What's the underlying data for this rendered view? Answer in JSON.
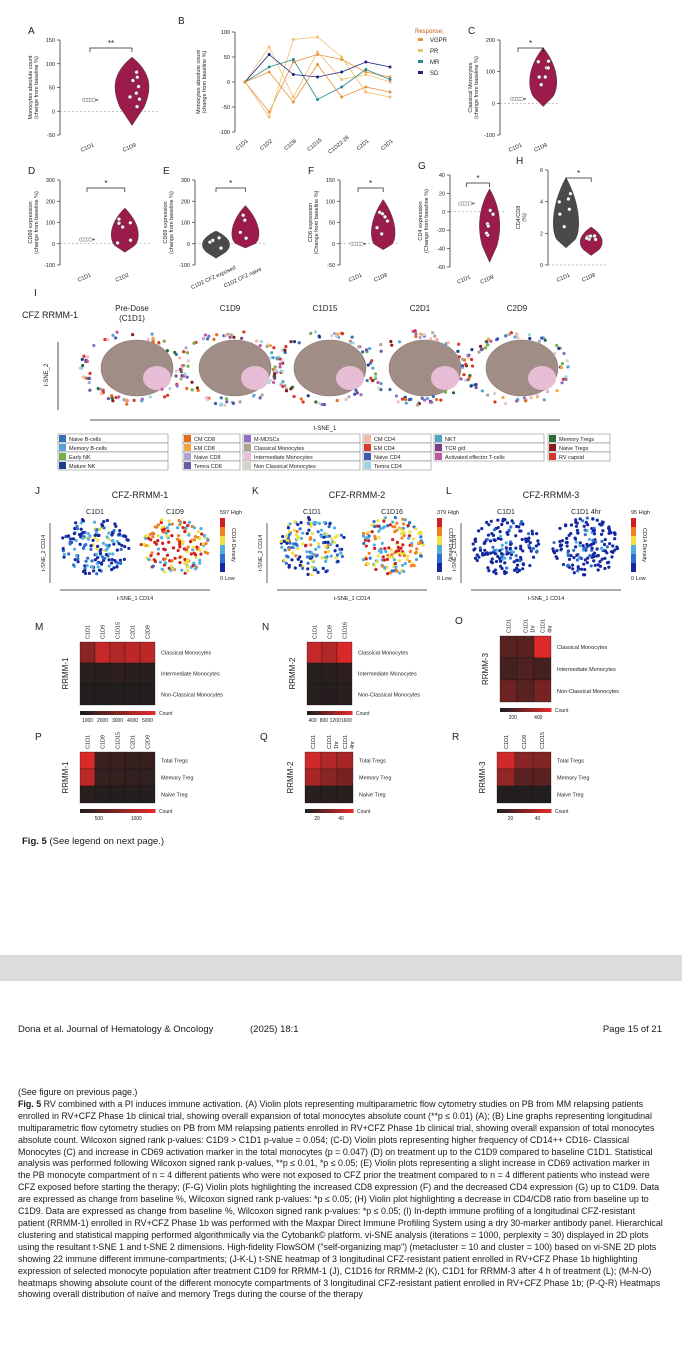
{
  "panels": {
    "A": {
      "letter": "A",
      "ylabel": "Monocytes absolute count (change from baseline %)",
      "yticks": [
        "150",
        "100",
        "50",
        "0",
        "-50"
      ],
      "xticks": [
        "C1D1",
        "C1D9"
      ],
      "sig": "**"
    },
    "B": {
      "letter": "B",
      "ylabel": "Monocytes absolute count (change from baseline %)",
      "yticks": [
        "100",
        "50",
        "0",
        "-50",
        "-100"
      ],
      "xticks": [
        "C1D1",
        "C1D2",
        "C1D9",
        "C1D15",
        "C1D22-28",
        "C2D1",
        "C3D1"
      ],
      "legend_title": "Response:",
      "legend": [
        {
          "name": "VGPR",
          "color": "#e8933a"
        },
        {
          "name": "PR",
          "color": "#f0c070"
        },
        {
          "name": "MR",
          "color": "#2a8a8a"
        },
        {
          "name": "SD",
          "color": "#1a237e"
        }
      ]
    },
    "C": {
      "letter": "C",
      "ylabel": "Classical Monocytes (change from baseline %)",
      "yticks": [
        "200",
        "100",
        "0",
        "-100"
      ],
      "xticks": [
        "C1D1",
        "C1D9"
      ],
      "sig": "*"
    },
    "D": {
      "letter": "D",
      "ylabel": "CD69 expression (change from baseline %)",
      "yticks": [
        "300",
        "200",
        "100",
        "0",
        "-100"
      ],
      "xticks": [
        "C1D1",
        "C1D2"
      ],
      "sig": "*"
    },
    "E": {
      "letter": "E",
      "ylabel": "CD69 expression (change from baseline %)",
      "yticks": [
        "300",
        "200",
        "100",
        "0",
        "-100"
      ],
      "xticks": [
        "C1D2 CFZ exposed",
        "C1D2 CFZ naive"
      ],
      "sig": "*"
    },
    "F": {
      "letter": "F",
      "ylabel": "CD8 expression (Change from baseline %)",
      "yticks": [
        "150",
        "100",
        "50",
        "0",
        "-50"
      ],
      "xticks": [
        "C1D1",
        "C1D9"
      ],
      "sig": "*"
    },
    "G": {
      "letter": "G",
      "ylabel": "CD4 expression (Change from baseline %)",
      "yticks": [
        "40",
        "20",
        "0",
        "-20",
        "-40",
        "-60"
      ],
      "xticks": [
        "C1D1",
        "C1D9"
      ],
      "sig": "*"
    },
    "H": {
      "letter": "H",
      "ylabel": "CD4/CD8 (%)",
      "yticks": [
        "6",
        "4",
        "2",
        "0"
      ],
      "xticks": [
        "C1D1",
        "C1D9"
      ],
      "sig": "*"
    },
    "I": {
      "letter": "I",
      "patient": "CFZ RRMM-1",
      "timepoints": [
        "Pre-Dose (C1D1)",
        "C1D9",
        "C1D15",
        "C2D1",
        "C2D9"
      ],
      "xaxis": "t-SNE_1",
      "yaxis": "t-SNE_2",
      "legend": [
        {
          "label": "Naive B-cells",
          "color": "#3b6fb6"
        },
        {
          "label": "Memory B-cells",
          "color": "#5aa0d8"
        },
        {
          "label": "Early NK",
          "color": "#74b04a"
        },
        {
          "label": "Mature NK",
          "color": "#1f3f8a"
        },
        {
          "label": "CM CD8",
          "color": "#e66c1a"
        },
        {
          "label": "EM CD8",
          "color": "#f2a541"
        },
        {
          "label": "Naive CD8",
          "color": "#b0a3cf"
        },
        {
          "label": "Temra CD8",
          "color": "#6f5aa8"
        },
        {
          "label": "M-MDSCs",
          "color": "#8e6fc1"
        },
        {
          "label": "Classical Monocytes",
          "color": "#b3a08f"
        },
        {
          "label": "Intermediate Monocytes",
          "color": "#ecbcd8"
        },
        {
          "label": "Non Classical Monocytes",
          "color": "#d7d0c8"
        },
        {
          "label": "CM CD4",
          "color": "#f4b7a6"
        },
        {
          "label": "EM CD4",
          "color": "#d73a2e"
        },
        {
          "label": "Naive CD4",
          "color": "#3a5bb0"
        },
        {
          "label": "Temra CD4",
          "color": "#9fd3e0"
        },
        {
          "label": "NKT",
          "color": "#4fa7c4"
        },
        {
          "label": "TCR g/d",
          "color": "#7a3d88"
        },
        {
          "label": "Activated effector T-cells",
          "color": "#c05aa0"
        },
        {
          "label": "Memory Tregs",
          "color": "#2e6b3a"
        },
        {
          "label": "Naive Tregs",
          "color": "#8a1c1c"
        },
        {
          "label": "RV capsid",
          "color": "#d8342c"
        }
      ]
    },
    "J": {
      "letter": "J",
      "title": "CFZ-RRMM-1",
      "left": "C1D1",
      "right": "C1D9",
      "high": "597 High",
      "low": "0 Low",
      "bar_label": "CD14 Density",
      "xaxis": "t-SNE_1 CD14",
      "yaxis": "t-SNE_2 CD14"
    },
    "K": {
      "letter": "K",
      "title": "CFZ-RRMM-2",
      "left": "C1D1",
      "right": "C1D16",
      "high": "379 High",
      "low": "0 Low",
      "bar_label": "CD14 Density",
      "xaxis": "t-SNE_1 CD14",
      "yaxis": "t-SNE_2 CD14"
    },
    "L": {
      "letter": "L",
      "title": "CFZ-RRMM-3",
      "left": "C1D1",
      "right": "C1D1 4hr",
      "high": "95 High",
      "low": "0 Low",
      "bar_label": "CD14 Density",
      "xaxis": "t-SNE_1 CD14",
      "yaxis": "t-SNE_2 CD14"
    },
    "M": {
      "letter": "M",
      "side": "RRMM-1",
      "cols": [
        "C1D1",
        "C1D9",
        "C1D15",
        "C2D1",
        "C2D9"
      ],
      "rows": [
        "Classical Monocytes",
        "Intermediate Monocytes",
        "Non-Classical Monocytes"
      ],
      "values": [
        [
          0.55,
          0.85,
          0.75,
          0.8,
          0.8
        ],
        [
          0.05,
          0.05,
          0.08,
          0.05,
          0.05
        ],
        [
          0.02,
          0.02,
          0.02,
          0.02,
          0.02
        ]
      ],
      "scale": [
        "1000",
        "2000",
        "3000",
        "4000",
        "5000"
      ],
      "scale_label": "Count"
    },
    "N": {
      "letter": "N",
      "side": "RRMM-2",
      "cols": [
        "C1D1",
        "C1D9",
        "C1D16"
      ],
      "rows": [
        "Classical Monocytes",
        "Intermediate Monocytes",
        "Non-Classical Monocytes"
      ],
      "values": [
        [
          0.85,
          0.75,
          0.95
        ],
        [
          0.05,
          0.05,
          0.08
        ],
        [
          0.05,
          0.04,
          0.05
        ]
      ],
      "scale": [
        "400",
        "800",
        "1200",
        "1600"
      ],
      "scale_label": "Count"
    },
    "O": {
      "letter": "O",
      "side": "RRMM-3",
      "cols": [
        "C1D1",
        "C1D1 1hr",
        "C1D1 4hr"
      ],
      "rows": [
        "Classical Monocytes",
        "Intermediate Monocytes",
        "Non-Classical Monocytes"
      ],
      "values": [
        [
          0.3,
          0.3,
          0.95
        ],
        [
          0.2,
          0.25,
          0.2
        ],
        [
          0.4,
          0.3,
          0.45
        ]
      ],
      "scale": [
        "200",
        "400"
      ],
      "scale_label": "Count"
    },
    "P": {
      "letter": "P",
      "side": "RRMM-1",
      "cols": [
        "C1D1",
        "C1D9",
        "C1D15",
        "C2D1",
        "C2D9"
      ],
      "rows": [
        "Total Tregs",
        "Memory Treg",
        "Naive Treg"
      ],
      "values": [
        [
          0.95,
          0.15,
          0.15,
          0.12,
          0.12
        ],
        [
          0.8,
          0.12,
          0.12,
          0.1,
          0.1
        ],
        [
          0.05,
          0.03,
          0.03,
          0.03,
          0.03
        ]
      ],
      "scale": [
        "500",
        "1000"
      ],
      "scale_label": "Count"
    },
    "Q": {
      "letter": "Q",
      "side": "RRMM-2",
      "cols": [
        "C1D1",
        "C1D1 1hr",
        "C1D1 4hr"
      ],
      "rows": [
        "Total Tregs",
        "Memory Treg",
        "Naive Treg"
      ],
      "values": [
        [
          0.9,
          0.75,
          0.7
        ],
        [
          0.7,
          0.55,
          0.45
        ],
        [
          0.05,
          0.05,
          0.05
        ]
      ],
      "scale": [
        "20",
        "40"
      ],
      "scale_label": "Count"
    },
    "R": {
      "letter": "R",
      "side": "RRMM-3",
      "cols": [
        "C1D1",
        "C1D9",
        "C1D15"
      ],
      "rows": [
        "Total Tregs",
        "Memory Treg",
        "Naive Treg"
      ],
      "values": [
        [
          0.9,
          0.55,
          0.5
        ],
        [
          0.6,
          0.3,
          0.3
        ],
        [
          0.02,
          0.02,
          0.02
        ]
      ],
      "scale": [
        "20",
        "40"
      ],
      "scale_label": "Count"
    }
  },
  "figure_caption": {
    "label": "Fig. 5",
    "text": " (See legend on next page.)"
  },
  "page_header": {
    "journal_left": "Dona et al. Journal of Hematology & Oncology",
    "year_vol": "(2025) 18:1",
    "page": "Page 15 of 21"
  },
  "legend": {
    "see_figure": "(See figure on previous page.)",
    "label": "Fig. 5",
    "text": " RV combined with a PI induces immune activation. (A) Violin plots representing multiparametric flow cytometry studies on PB from MM relapsing patients enrolled in RV+CFZ Phase 1b clinical trial, showing overall expansion of total monocytes absolute count (**p ≤ 0.01) (A); (B) Line graphs representing longitudinal multiparametric flow cytometry studies on PB from MM relapsing patients enrolled in RV+CFZ Phase 1b clinical trial, showing overall expansion of total monocytes absolute count. Wilcoxon signed rank p-values: C1D9 > C1D1 p-value = 0.054; (C-D) Violin plots representing higher frequency of CD14++ CD16- Classical Monocytes (C) and increase in CD69 activation marker in the total monocytes (p = 0.047) (D) on treatment up to the C1D9 compared to baseline C1D1. Statistical analysis was performed following Wilcoxon signed rank p-values, **p ≤ 0.01, *p ≤ 0.05; (E) Violin plots representing a slight increase in CD69 activation marker in the PB monocyte compartment of n = 4 different patients who were not exposed to CFZ prior the treatment compared to n = 4 different patients who instead were CFZ exposed before starting the therapy; (F-G) Violin plots highlighting the increased CD8 expression (F) and the decreased CD4 expression (G) up to C1D9. Data are expressed as change from baseline %, Wilcoxon signed rank p-values: *p ≤ 0.05; (H) Violin plot highlighting a decrease in CD4/CD8 ratio from baseline up to C1D9. Data are expressed as change from baseline %, Wilcoxon signed rank p-values: *p ≤ 0.05; (I) In-depth immune profiling of a longitudinal CFZ-resistant patient (RRMM-1) enrolled in RV+CFZ Phase 1b was performed with the Maxpar Direct Immune Profiling System using a dry 30-marker antibody panel. Hierarchical clustering and statistical mapping performed algorithmically via the Cytobank© platform. vi-SNE analysis (iterations = 1000, perplexity = 30) displayed in 2D plots using the resultant t-SNE 1 and t-SNE 2 dimensions. High-fidelity FlowSOM (\"self-organizing map\") (metacluster = 10 and cluster = 100) based on vi-SNE 2D plots showing 22 immune different immune-compartments; (J-K-L) t-SNE heatmap of 3 longitudinal CFZ-resistant patient enrolled in RV+CFZ Phase 1b highlighting expression of selected monocyte population after treatment C1D9 for RRMM-1 (J), C1D16 for RRMM-2 (K), C1D1 for RRMM-3 after 4 h of treatment (L); (M-N-O) heatmaps showing absolute count of the different monocyte compartments of 3 longitudinal CFZ-resistant patient enrolled in RV+CFZ Phase 1b; (P-Q-R) Heatmaps showing overall distribution of naïve and memory Tregs during the course of the therapy"
  },
  "colors": {
    "violin": "#9b1b4a",
    "heat_low": "#1e1e1e",
    "heat_high": "#e32a2a"
  }
}
